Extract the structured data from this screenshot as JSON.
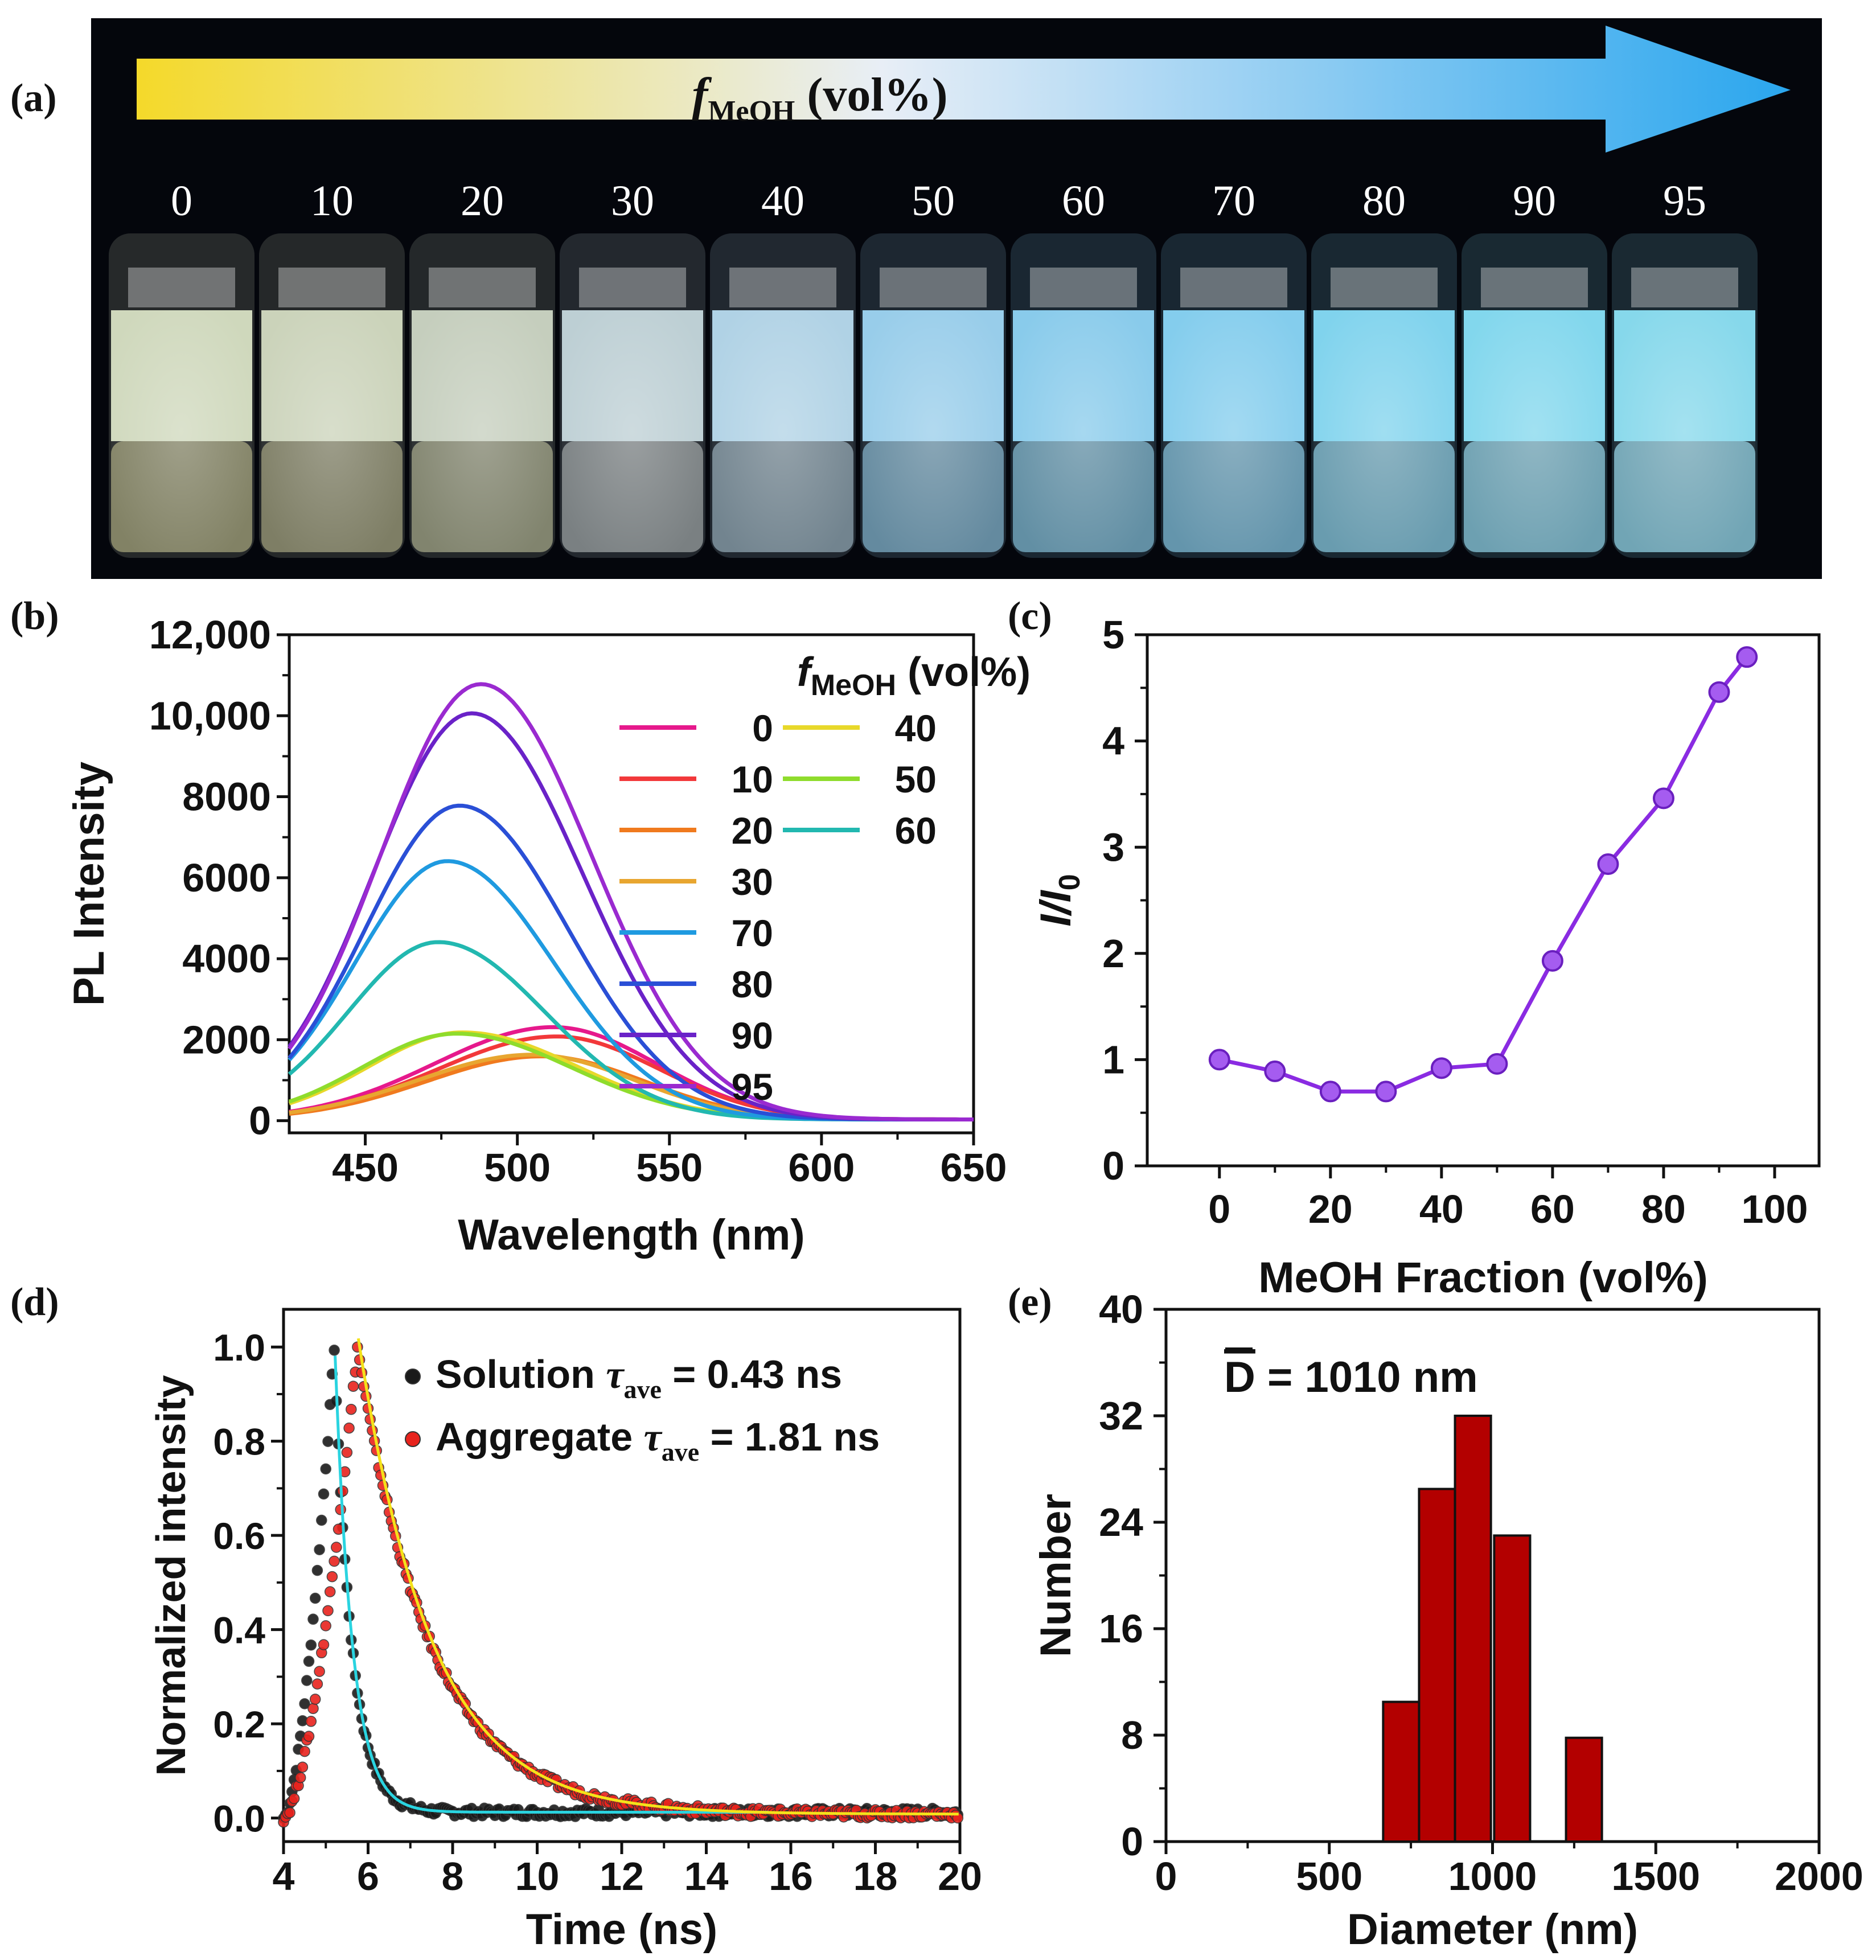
{
  "panel_labels": {
    "a": "(a)",
    "b": "(b)",
    "c": "(c)",
    "d": "(d)",
    "e": "(e)"
  },
  "colors": {
    "text": "#111111",
    "panel_a_bg": "#04060c",
    "arrow_start": "#f4d92a",
    "arrow_mid": "#e6eef8",
    "arrow_end": "#2aa6ee",
    "line_c": "#8a2be2",
    "bar_e": "#b30000",
    "fit_solution": "#2ad4e0",
    "fit_aggregate": "#f4e21a",
    "points_solution": "#1a1a1a",
    "points_aggregate": "#e8231d"
  },
  "panel_a": {
    "arrow_label_f": "f",
    "arrow_label_sub": "MeOH",
    "arrow_label_rest": " (vol%)",
    "vial_labels": [
      "0",
      "10",
      "20",
      "30",
      "40",
      "50",
      "60",
      "70",
      "80",
      "90",
      "95"
    ],
    "vial_colors": [
      "#d8e1c4",
      "#d4dcc2",
      "#cfd7c5",
      "#c6d8dd",
      "#b8dbef",
      "#9fd6f4",
      "#8fd4f6",
      "#8ad6f8",
      "#86dcf8",
      "#88e0f8",
      "#8ce2f6"
    ],
    "vial_bottom_colors": [
      "#8a8a6a",
      "#86866a",
      "#8a8c74",
      "#82888a",
      "#7a8c98",
      "#6a92a8",
      "#6898ae",
      "#6a9eb6",
      "#70a6ba",
      "#74aabc",
      "#78b0c0"
    ]
  },
  "chart_data": [
    {
      "panel": "b",
      "type": "line",
      "xlabel": "Wavelength (nm)",
      "ylabel": "PL Intensity",
      "xlim": [
        425,
        650
      ],
      "ylim": [
        -300,
        12000
      ],
      "xticks": [
        450,
        500,
        550,
        600,
        650
      ],
      "yticks": [
        0,
        2000,
        4000,
        6000,
        8000,
        10000,
        12000
      ],
      "ytick_labels": [
        "0",
        "2000",
        "4000",
        "6000",
        "8000",
        "10,000",
        "12,000"
      ],
      "legend_title_f": "f",
      "legend_title_sub": "MeOH",
      "legend_title_rest": " (vol%)",
      "legend_placement": "top-right",
      "series": [
        {
          "name": "0",
          "color": "#e6198c",
          "peak_x": 512,
          "peak_y": 2280,
          "width_left": 58,
          "width_right": 50
        },
        {
          "name": "10",
          "color": "#f2383a",
          "peak_x": 513,
          "peak_y": 2050,
          "width_left": 58,
          "width_right": 50
        },
        {
          "name": "20",
          "color": "#f07a1e",
          "peak_x": 508,
          "peak_y": 1560,
          "width_left": 56,
          "width_right": 50
        },
        {
          "name": "30",
          "color": "#e8a630",
          "peak_x": 505,
          "peak_y": 1600,
          "width_left": 56,
          "width_right": 50
        },
        {
          "name": "40",
          "color": "#e8d82a",
          "peak_x": 482,
          "peak_y": 2150,
          "width_left": 46,
          "width_right": 56
        },
        {
          "name": "50",
          "color": "#8fdc2c",
          "peak_x": 480,
          "peak_y": 2120,
          "width_left": 46,
          "width_right": 56
        },
        {
          "name": "60",
          "color": "#22b8b0",
          "peak_x": 474,
          "peak_y": 4380,
          "width_left": 44,
          "width_right": 52
        },
        {
          "name": "70",
          "color": "#1f9ae0",
          "peak_x": 477,
          "peak_y": 6380,
          "width_left": 45,
          "width_right": 52
        },
        {
          "name": "80",
          "color": "#2a4fd6",
          "peak_x": 481,
          "peak_y": 7750,
          "width_left": 46,
          "width_right": 53
        },
        {
          "name": "90",
          "color": "#6a22c8",
          "peak_x": 485,
          "peak_y": 10030,
          "width_left": 48,
          "width_right": 54
        },
        {
          "name": "95",
          "color": "#9a2ad0",
          "peak_x": 488,
          "peak_y": 10750,
          "width_left": 49,
          "width_right": 54
        }
      ]
    },
    {
      "panel": "c",
      "type": "line",
      "xlabel": "MeOH Fraction (vol%)",
      "ylabel_main": "I/I",
      "ylabel_sub": "0",
      "xlim": [
        -13,
        108
      ],
      "ylim": [
        0,
        5
      ],
      "xticks": [
        0,
        20,
        40,
        60,
        80,
        100
      ],
      "yticks": [
        0,
        1,
        2,
        3,
        4,
        5
      ],
      "x": [
        0,
        10,
        20,
        30,
        40,
        50,
        60,
        70,
        80,
        90,
        95
      ],
      "y": [
        1.0,
        0.89,
        0.7,
        0.7,
        0.92,
        0.96,
        1.93,
        2.84,
        3.46,
        4.46,
        4.79
      ]
    },
    {
      "panel": "d",
      "type": "scatter",
      "xlabel": "Time (ns)",
      "ylabel": "Normalized intensity",
      "xlim": [
        4,
        20
      ],
      "ylim": [
        -0.05,
        1.08
      ],
      "xticks": [
        4,
        6,
        8,
        10,
        12,
        14,
        16,
        18,
        20
      ],
      "yticks": [
        0.0,
        0.2,
        0.4,
        0.6,
        0.8,
        1.0
      ],
      "ytick_labels": [
        "0.0",
        "0.2",
        "0.4",
        "0.6",
        "0.8",
        "1.0"
      ],
      "legend_placement": "top-right",
      "series": [
        {
          "name_main": "Solution ",
          "name_tau": "τ",
          "name_sub": "ave",
          "name_rest": " = 0.43 ns",
          "rise_start": 4.0,
          "peak_t": 5.2,
          "tau": 0.43,
          "baseline": 0.012,
          "fit_end": 15.5
        },
        {
          "name_main": "Aggregate ",
          "name_tau": "τ",
          "name_sub": "ave",
          "name_rest": " = 1.81 ns",
          "rise_start": 4.0,
          "peak_t": 5.75,
          "tau": 1.81,
          "baseline": 0.008,
          "fit_end": 20.0
        }
      ]
    },
    {
      "panel": "e",
      "type": "bar",
      "xlabel": "Diameter (nm)",
      "ylabel": "Number",
      "xlim": [
        0,
        2000
      ],
      "ylim": [
        0,
        40
      ],
      "xticks": [
        0,
        500,
        1000,
        1500,
        2000
      ],
      "yticks": [
        0,
        8,
        16,
        24,
        32,
        40
      ],
      "annotation_D": "D",
      "annotation_rest": " = 1010 nm",
      "bin_width": 100,
      "categories": [
        700,
        800,
        900,
        1000,
        1100,
        1200
      ],
      "bin_centers": [
        720,
        830,
        940,
        1060,
        1170,
        1280
      ],
      "values": [
        10.5,
        26.5,
        32,
        23,
        0,
        7.8
      ]
    }
  ]
}
